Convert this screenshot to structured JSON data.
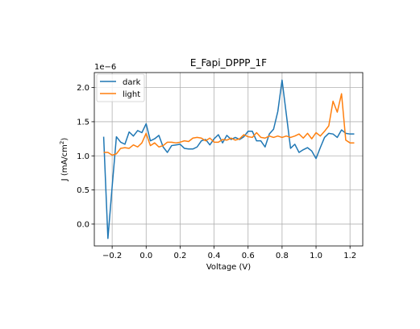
{
  "chart_data": {
    "type": "line",
    "title": "E_Fapi_DPPP_1F",
    "xlabel": "Voltage (V)",
    "ylabel_main": "J (mA/cm",
    "ylabel_sup": "2",
    "ylabel_close": ")",
    "offset_text": "1e−6",
    "xlim": [
      -0.305,
      1.275
    ],
    "ylim": [
      -0.32,
      2.22
    ],
    "scale_label": "1e-6",
    "grid": true,
    "legend_position": "top-left",
    "xticks": [
      {
        "v": -0.2,
        "label": "−0.2"
      },
      {
        "v": 0.0,
        "label": "0.0"
      },
      {
        "v": 0.2,
        "label": "0.2"
      },
      {
        "v": 0.4,
        "label": "0.4"
      },
      {
        "v": 0.6,
        "label": "0.6"
      },
      {
        "v": 0.8,
        "label": "0.8"
      },
      {
        "v": 1.0,
        "label": "1.0"
      },
      {
        "v": 1.2,
        "label": "1.2"
      }
    ],
    "yticks": [
      {
        "v": 0.0,
        "label": "0.0"
      },
      {
        "v": 0.5,
        "label": "0.5"
      },
      {
        "v": 1.0,
        "label": "1.0"
      },
      {
        "v": 1.5,
        "label": "1.5"
      },
      {
        "v": 2.0,
        "label": "2.0"
      }
    ],
    "x": [
      -0.25,
      -0.225,
      -0.2,
      -0.175,
      -0.15,
      -0.125,
      -0.1,
      -0.075,
      -0.05,
      -0.025,
      0.0,
      0.025,
      0.05,
      0.075,
      0.1,
      0.125,
      0.15,
      0.175,
      0.2,
      0.225,
      0.25,
      0.275,
      0.3,
      0.325,
      0.35,
      0.375,
      0.4,
      0.425,
      0.45,
      0.475,
      0.5,
      0.525,
      0.55,
      0.575,
      0.6,
      0.625,
      0.65,
      0.675,
      0.7,
      0.725,
      0.75,
      0.775,
      0.8,
      0.825,
      0.85,
      0.875,
      0.9,
      0.925,
      0.95,
      0.975,
      1.0,
      1.025,
      1.05,
      1.075,
      1.1,
      1.125,
      1.15,
      1.175,
      1.2,
      1.225
    ],
    "series": [
      {
        "name": "dark",
        "color": "#1f77b4",
        "values": [
          1.28,
          -0.21,
          0.55,
          1.28,
          1.2,
          1.17,
          1.35,
          1.29,
          1.37,
          1.34,
          1.47,
          1.22,
          1.25,
          1.3,
          1.13,
          1.05,
          1.15,
          1.16,
          1.17,
          1.11,
          1.1,
          1.1,
          1.13,
          1.22,
          1.24,
          1.16,
          1.25,
          1.31,
          1.19,
          1.3,
          1.24,
          1.27,
          1.24,
          1.28,
          1.36,
          1.36,
          1.22,
          1.22,
          1.13,
          1.32,
          1.39,
          1.65,
          2.11,
          1.61,
          1.11,
          1.17,
          1.05,
          1.09,
          1.12,
          1.07,
          0.96,
          1.12,
          1.27,
          1.33,
          1.32,
          1.27,
          1.38,
          1.33,
          1.32,
          1.32
        ]
      },
      {
        "name": "light",
        "color": "#ff7f0e",
        "values": [
          1.05,
          1.05,
          1.01,
          1.03,
          1.11,
          1.12,
          1.11,
          1.16,
          1.13,
          1.19,
          1.33,
          1.15,
          1.19,
          1.13,
          1.15,
          1.2,
          1.2,
          1.19,
          1.2,
          1.22,
          1.21,
          1.26,
          1.27,
          1.26,
          1.22,
          1.26,
          1.2,
          1.2,
          1.24,
          1.23,
          1.26,
          1.23,
          1.25,
          1.31,
          1.28,
          1.27,
          1.34,
          1.27,
          1.26,
          1.29,
          1.27,
          1.29,
          1.27,
          1.29,
          1.27,
          1.29,
          1.32,
          1.26,
          1.33,
          1.25,
          1.34,
          1.29,
          1.36,
          1.44,
          1.8,
          1.64,
          1.91,
          1.23,
          1.19,
          1.19
        ]
      }
    ]
  }
}
